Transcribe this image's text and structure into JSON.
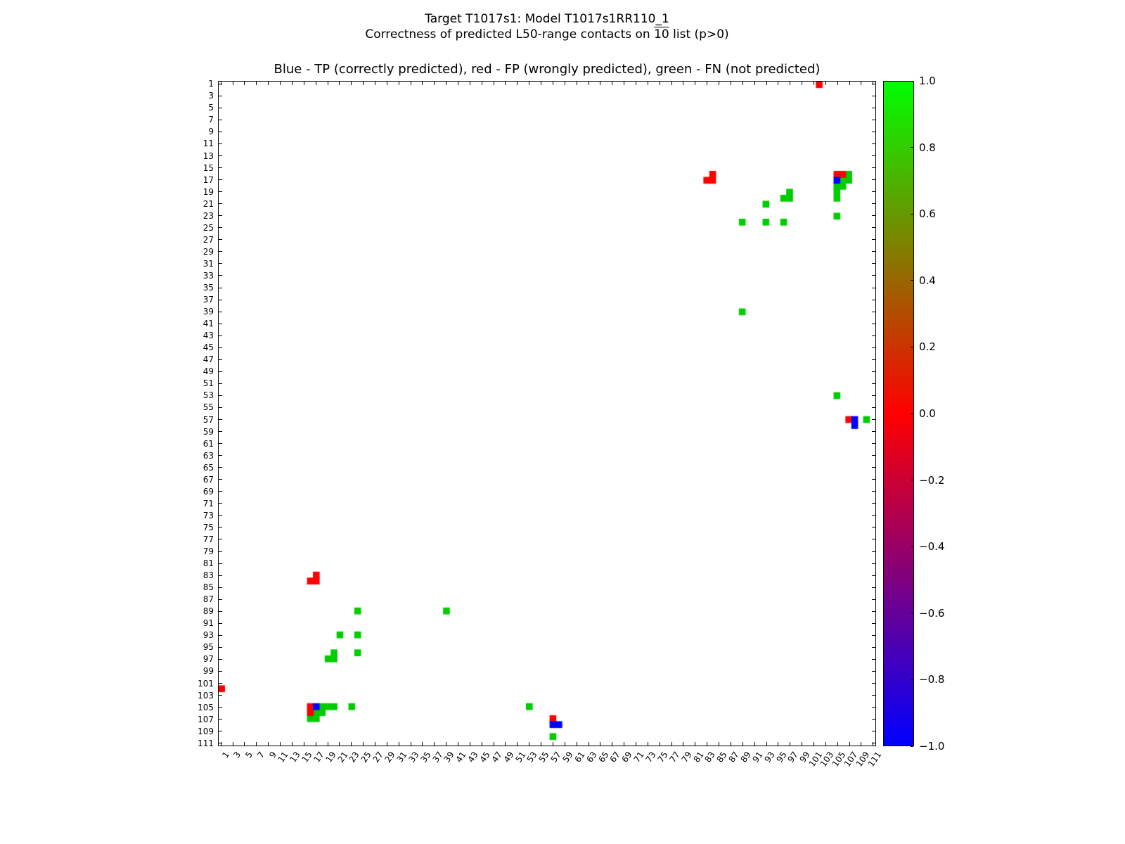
{
  "figure": {
    "title_line1": "Target T1017s1: Model T1017s1RR110_1",
    "subtitle_prefix": "Correctness of predicted L50-range contacts on ",
    "subtitle_overline": "10",
    "subtitle_suffix": " list (p>0)"
  },
  "chart_data": {
    "type": "heatmap",
    "title": "Blue - TP (correctly predicted), red - FP (wrongly predicted), green - FN (not predicted)",
    "x_range": [
      1,
      111
    ],
    "y_range": [
      1,
      111
    ],
    "symmetric": true,
    "axis_ticks": [
      1,
      3,
      5,
      7,
      9,
      11,
      13,
      15,
      17,
      19,
      21,
      23,
      25,
      27,
      29,
      31,
      33,
      35,
      37,
      39,
      41,
      43,
      45,
      47,
      49,
      51,
      53,
      55,
      57,
      59,
      61,
      63,
      65,
      67,
      69,
      71,
      73,
      75,
      77,
      79,
      81,
      83,
      85,
      87,
      89,
      91,
      93,
      95,
      97,
      99,
      101,
      103,
      105,
      107,
      109,
      111
    ],
    "legend": {
      "blue": "TP (correctly predicted)",
      "red": "FP (wrongly predicted)",
      "green": "FN (not predicted)"
    },
    "colors": {
      "tp": "#0000ff",
      "fp": "#ff0000",
      "fn": "#00cc00"
    },
    "contacts": {
      "tp": [
        [
          105,
          17
        ],
        [
          108,
          57
        ],
        [
          108,
          58
        ]
      ],
      "fp": [
        [
          102,
          1
        ],
        [
          84,
          16
        ],
        [
          83,
          17
        ],
        [
          84,
          17
        ],
        [
          105,
          16
        ],
        [
          106,
          16
        ],
        [
          107,
          57
        ]
      ],
      "fn": [
        [
          107,
          16
        ],
        [
          106,
          17
        ],
        [
          107,
          17
        ],
        [
          105,
          18
        ],
        [
          106,
          18
        ],
        [
          105,
          19
        ],
        [
          105,
          20
        ],
        [
          97,
          19
        ],
        [
          96,
          20
        ],
        [
          97,
          20
        ],
        [
          93,
          21
        ],
        [
          105,
          23
        ],
        [
          89,
          24
        ],
        [
          93,
          24
        ],
        [
          96,
          24
        ],
        [
          89,
          39
        ],
        [
          105,
          53
        ],
        [
          110,
          57
        ]
      ]
    },
    "colorbar": {
      "min": -1.0,
      "max": 1.0,
      "gradient_top_to_bottom": [
        "#00ff00",
        "#ff0000",
        "#0000ff"
      ],
      "tick_labels": [
        "1.0",
        "0.8",
        "0.6",
        "0.4",
        "0.2",
        "0.0",
        "−0.2",
        "−0.4",
        "−0.6",
        "−0.8",
        "−1.0"
      ]
    }
  }
}
